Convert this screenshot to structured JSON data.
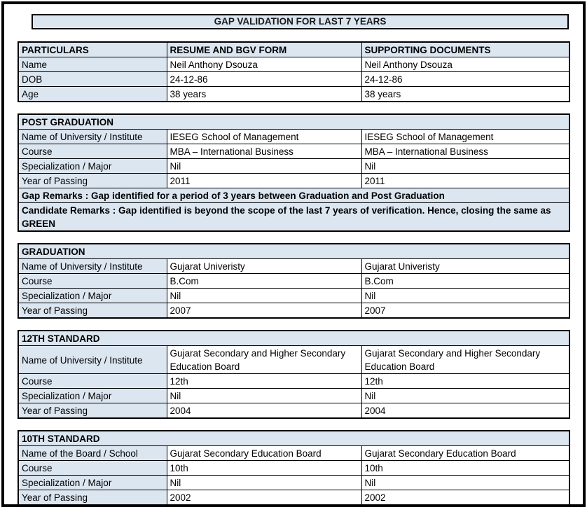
{
  "colors": {
    "shade": "#dce6f1",
    "border": "#000000"
  },
  "title_bar": {
    "text": "GAP VALIDATION FOR LAST 7 YEARS"
  },
  "particulars": {
    "col_headers": [
      "PARTICULARS",
      "RESUME AND BGV FORM",
      "SUPPORTING DOCUMENTS"
    ],
    "rows": [
      {
        "label": "Name",
        "resume": "Neil Anthony Dsouza",
        "supporting": "Neil Anthony Dsouza"
      },
      {
        "label": "DOB",
        "resume": "24-12-86",
        "supporting": "24-12-86"
      },
      {
        "label": "Age",
        "resume": "38 years",
        "supporting": "38 years"
      }
    ]
  },
  "sections": [
    {
      "title": "POST GRADUATION",
      "rows": [
        {
          "label": "Name of University / Institute",
          "resume": "IESEG School of Management",
          "supporting": "IESEG School of Management"
        },
        {
          "label": "Course",
          "resume": "MBA – International Business",
          "supporting": "MBA – International Business"
        },
        {
          "label": "Specialization / Major",
          "resume": "Nil",
          "supporting": "Nil"
        },
        {
          "label": "Year of Passing",
          "resume": "2011",
          "supporting": "2011"
        }
      ],
      "gap_remarks": "Gap Remarks : Gap identified for a period of 3 years between Graduation and Post Graduation",
      "candidate_remarks": "Candidate Remarks : Gap identified is beyond the scope of the last 7 years of verification. Hence, closing the same as GREEN"
    },
    {
      "title": "GRADUATION",
      "rows": [
        {
          "label": "Name of University / Institute",
          "resume": "Gujarat Univeristy",
          "supporting": "Gujarat Univeristy"
        },
        {
          "label": "Course",
          "resume": "B.Com",
          "supporting": "B.Com"
        },
        {
          "label": "Specialization / Major",
          "resume": "Nil",
          "supporting": "Nil"
        },
        {
          "label": "Year of Passing",
          "resume": "2007",
          "supporting": "2007"
        }
      ]
    },
    {
      "title": "12TH STANDARD",
      "rows": [
        {
          "label": "Name of University / Institute",
          "resume": "Gujarat Secondary and Higher Secondary Education Board",
          "supporting": "Gujarat Secondary and Higher Secondary Education Board"
        },
        {
          "label": "Course",
          "resume": "12th",
          "supporting": "12th"
        },
        {
          "label": "Specialization / Major",
          "resume": "Nil",
          "supporting": "Nil"
        },
        {
          "label": "Year of Passing",
          "resume": "2004",
          "supporting": "2004"
        }
      ]
    },
    {
      "title": "10TH STANDARD",
      "rows": [
        {
          "label": "Name of the Board / School",
          "resume": "Gujarat Secondary Education Board",
          "supporting": "Gujarat Secondary Education Board"
        },
        {
          "label": "Course",
          "resume": "10th",
          "supporting": "10th"
        },
        {
          "label": "Specialization / Major",
          "resume": "Nil",
          "supporting": "Nil"
        },
        {
          "label": "Year of Passing",
          "resume": "2002",
          "supporting": "2002"
        }
      ]
    }
  ]
}
